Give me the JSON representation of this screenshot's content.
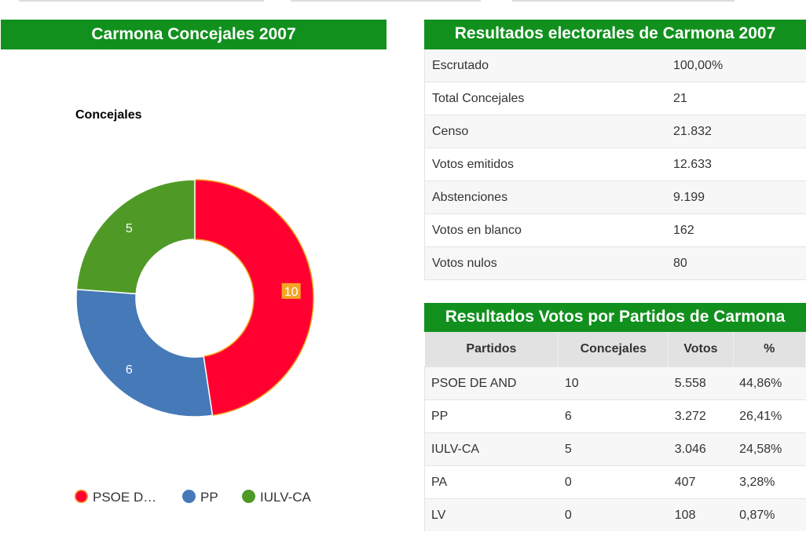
{
  "left_panel": {
    "title": "Carmona Concejales 2007"
  },
  "chart": {
    "title": "Concejales"
  },
  "chart_data": {
    "type": "pie",
    "title": "Concejales",
    "categories": [
      "PSOE DE AND",
      "PP",
      "IULV-CA"
    ],
    "values": [
      10,
      6,
      5
    ],
    "colors": [
      "#ff0030",
      "#4579b8",
      "#4f9a27"
    ],
    "legend_labels": [
      "PSOE D…",
      "PP",
      "IULV-CA"
    ],
    "data_labels": [
      "10",
      "6",
      "5"
    ],
    "legend_position": "bottom",
    "donut": true
  },
  "results_panel": {
    "title": "Resultados electorales de Carmona 2007",
    "rows": [
      {
        "label": "Escrutado",
        "value": "100,00%"
      },
      {
        "label": "Total Concejales",
        "value": "21"
      },
      {
        "label": "Censo",
        "value": "21.832"
      },
      {
        "label": "Votos emitidos",
        "value": "12.633"
      },
      {
        "label": "Abstenciones",
        "value": "9.199"
      },
      {
        "label": "Votos en blanco",
        "value": "162"
      },
      {
        "label": "Votos nulos",
        "value": "80"
      }
    ]
  },
  "votes_panel": {
    "title": "Resultados Votos por Partidos de Carmona",
    "headers": [
      "Partidos",
      "Concejales",
      "Votos",
      "%"
    ],
    "rows": [
      {
        "party": "PSOE DE AND",
        "concejales": "10",
        "votos": "5.558",
        "pct": "44,86%"
      },
      {
        "party": "PP",
        "concejales": "6",
        "votos": "3.272",
        "pct": "26,41%"
      },
      {
        "party": "IULV-CA",
        "concejales": "5",
        "votos": "3.046",
        "pct": "24,58%"
      },
      {
        "party": "PA",
        "concejales": "0",
        "votos": "407",
        "pct": "3,28%"
      },
      {
        "party": "LV",
        "concejales": "0",
        "votos": "108",
        "pct": "0,87%"
      }
    ]
  }
}
